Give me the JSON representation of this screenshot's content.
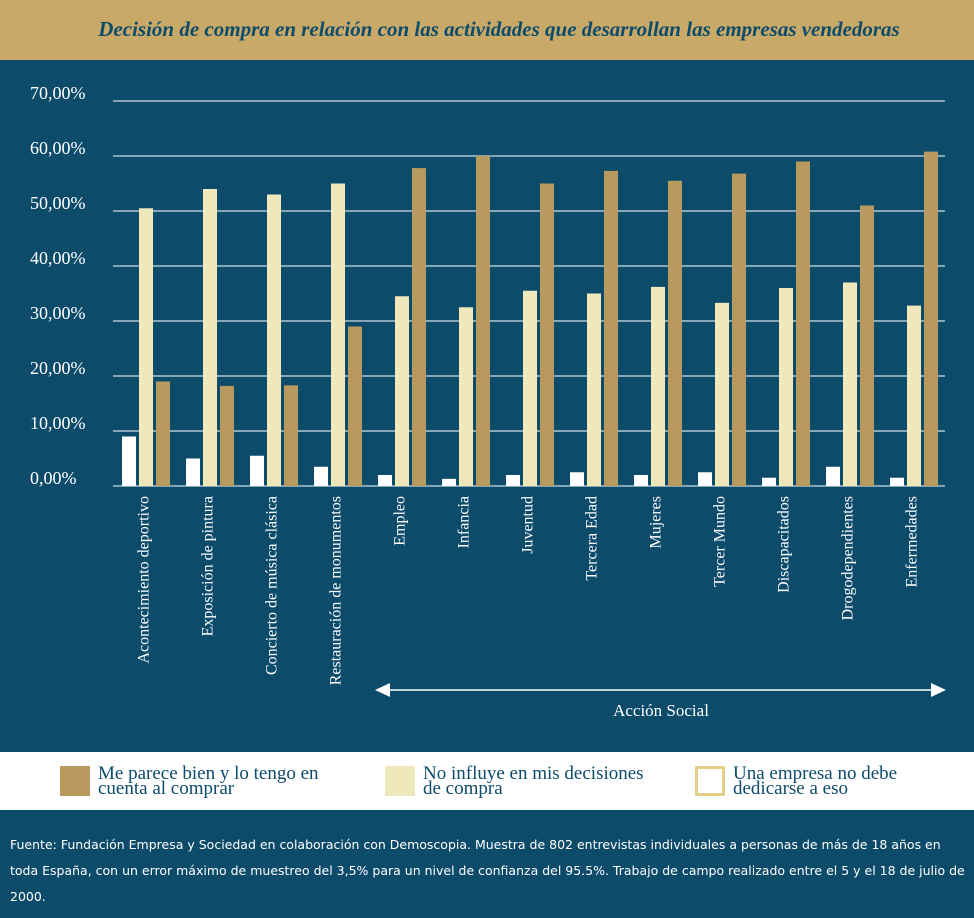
{
  "chart_data": {
    "type": "bar",
    "title": "Decisión de compra en relación con las actividades que desarrollan las empresas vendedoras",
    "categories": [
      "Acontecimiento deportivo",
      "Exposición de pintura",
      "Concierto de música clásica",
      "Restauración de monumentos",
      "Empleo",
      "Infancia",
      "Juventud",
      "Tercera Edad",
      "Mujeres",
      "Tercer Mundo",
      "Discapacitados",
      "Drogodependientes",
      "Enfermedades"
    ],
    "series": [
      {
        "name": "Me parece bien y lo tengo en cuenta al comprar",
        "color": "#b89a5e",
        "values": [
          19,
          18.2,
          18.3,
          29,
          57.8,
          60,
          55,
          57.3,
          55.5,
          56.8,
          59,
          51,
          60.8
        ]
      },
      {
        "name": "No influye en mis decisiones de compra",
        "color": "#efe8bc",
        "values": [
          50.5,
          54,
          53,
          55,
          34.5,
          32.5,
          35.5,
          35,
          36.2,
          33.3,
          36,
          37,
          32.8
        ]
      },
      {
        "name": "Una empresa no debe dedicarse a eso",
        "color": "#ffffff",
        "values": [
          9,
          5,
          5.5,
          3.5,
          2,
          1.3,
          2,
          2.5,
          2,
          2.5,
          1.5,
          3.5,
          1.5
        ]
      }
    ],
    "ylim": [
      0,
      70
    ],
    "yticks": [
      {
        "value": 0,
        "label": "0,00%"
      },
      {
        "value": 10,
        "label": "10,00%"
      },
      {
        "value": 20,
        "label": "20,00%"
      },
      {
        "value": 30,
        "label": "30,00%"
      },
      {
        "value": 40,
        "label": "40,00%"
      },
      {
        "value": 50,
        "label": "50,00%"
      },
      {
        "value": 60,
        "label": "60,00%"
      },
      {
        "value": 70,
        "label": "70,00%"
      }
    ],
    "grid": true,
    "annotation": "Acción Social",
    "source": "Fuente: Fundación Empresa y Sociedad en colaboración con Demoscopia. Muestra de 802 entrevistas individuales a personas de más de 18 años en toda España, con un error máximo de muestreo del 3,5% para un nivel de confianza del 95.5%. Trabajo de campo realizado entre el 5 y el 18 de julio de 2000."
  }
}
